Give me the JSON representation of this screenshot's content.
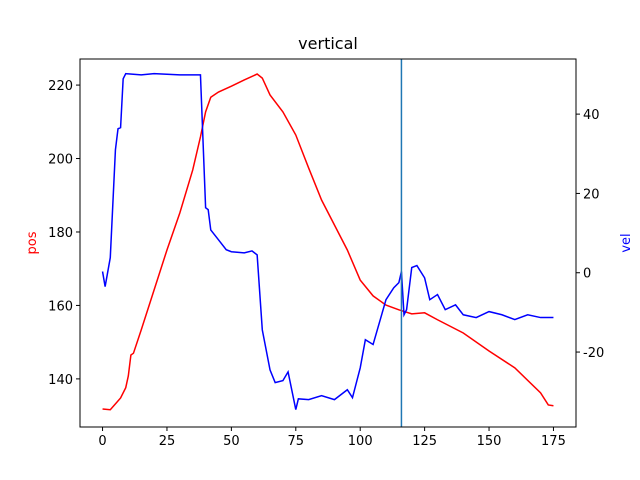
{
  "chart_data": {
    "type": "line",
    "title": "vertical",
    "ylabel": "pos",
    "y2label": "vel",
    "ylabel_color": "red",
    "y2label_color": "blue",
    "xlim": [
      -8.75,
      183.75
    ],
    "xticks": [
      0,
      25,
      50,
      75,
      100,
      125,
      150,
      175
    ],
    "ylim": [
      126.9,
      227.1
    ],
    "yticks": [
      140,
      160,
      180,
      200,
      220
    ],
    "y2lim": [
      -38.9,
      53.9
    ],
    "y2ticks": [
      -20,
      0,
      20,
      40
    ],
    "vline_x": 116,
    "vline_color": "#1f77b4",
    "series": [
      {
        "color": "red",
        "x": [
          0,
          3,
          5,
          7,
          9,
          10,
          11,
          12,
          15,
          20,
          25,
          30,
          35,
          38,
          40,
          42,
          45,
          50,
          55,
          60,
          62,
          65,
          70,
          75,
          80,
          85,
          90,
          95,
          100,
          105,
          110,
          115,
          120,
          125,
          130,
          140,
          150,
          160,
          170,
          173,
          175
        ],
        "values": [
          131.8,
          131.6,
          133.2,
          134.8,
          137.6,
          140.8,
          146.5,
          147,
          153.3,
          164.2,
          175.1,
          185.2,
          196.9,
          205.9,
          212.7,
          216.7,
          218.1,
          219.7,
          221.4,
          223,
          221.9,
          217.3,
          212.7,
          206.4,
          197.4,
          188.7,
          181.9,
          175.1,
          166.9,
          162.6,
          160.1,
          158.8,
          157.7,
          158,
          156.1,
          152.5,
          147.6,
          143,
          136.2,
          132.9,
          132.7
        ]
      },
      {
        "color": "blue",
        "axis": "y2",
        "x": [
          0,
          1,
          3,
          5,
          6,
          7,
          8,
          9,
          15,
          20,
          30,
          38,
          40,
          41,
          42,
          45,
          48,
          50,
          55,
          58,
          60,
          62,
          65,
          67,
          70,
          72,
          75,
          76,
          80,
          85,
          90,
          95,
          97,
          100,
          102,
          105,
          110,
          113,
          115,
          116,
          117,
          118,
          120,
          122,
          125,
          127,
          130,
          133,
          137,
          140,
          145,
          150,
          155,
          160,
          165,
          170,
          175
        ],
        "values": [
          0.3,
          -3.5,
          3.8,
          31,
          36.3,
          36.6,
          48.9,
          50.2,
          49.9,
          50.2,
          49.9,
          49.9,
          16.4,
          15.9,
          10.8,
          8.3,
          5.8,
          5.3,
          5,
          5.5,
          4.5,
          -14.4,
          -24.5,
          -27.7,
          -27.2,
          -25,
          -34.5,
          -31.8,
          -32,
          -31,
          -32,
          -29.5,
          -31.5,
          -24,
          -16.9,
          -18.1,
          -6.8,
          -3.8,
          -2.5,
          0.3,
          -10.6,
          -9.3,
          1.3,
          1.8,
          -1.3,
          -6.8,
          -5.5,
          -9.3,
          -8.1,
          -10.6,
          -11.3,
          -9.8,
          -10.6,
          -11.8,
          -10.6,
          -11.3,
          -11.3
        ]
      }
    ]
  }
}
